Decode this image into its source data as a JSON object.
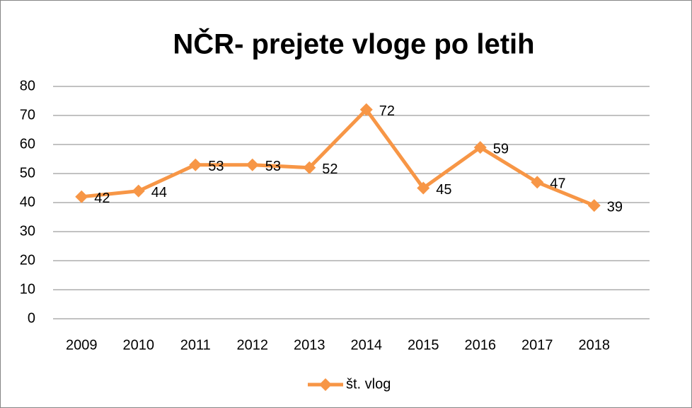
{
  "chart_data": {
    "type": "line",
    "title": "NČR- prejete vloge po letih",
    "categories": [
      "2009",
      "2010",
      "2011",
      "2012",
      "2013",
      "2014",
      "2015",
      "2016",
      "2017",
      "2018"
    ],
    "series": [
      {
        "name": "št. vlog",
        "color": "#f79646",
        "values": [
          42,
          44,
          53,
          53,
          52,
          72,
          45,
          59,
          47,
          39
        ]
      }
    ],
    "ylim": [
      0,
      80
    ],
    "yticks": [
      0,
      10,
      20,
      30,
      40,
      50,
      60,
      70,
      80
    ],
    "grid": true,
    "legend": "bottom"
  }
}
